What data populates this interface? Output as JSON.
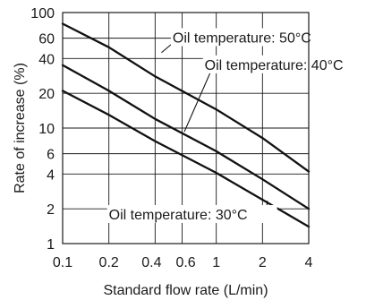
{
  "chart_data": {
    "type": "line",
    "xlabel": "Standard flow rate (L/min)",
    "ylabel": "Rate of increase (%)",
    "xscale": "log",
    "yscale": "log",
    "xlim": [
      0.1,
      4
    ],
    "ylim": [
      1,
      100
    ],
    "grid": "partial",
    "xticks": [
      {
        "value": 0.1,
        "label": "0.1"
      },
      {
        "value": 0.2,
        "label": "0.2"
      },
      {
        "value": 0.4,
        "label": "0.4"
      },
      {
        "value": 0.6,
        "label": "0.6"
      },
      {
        "value": 1,
        "label": "1"
      },
      {
        "value": 2,
        "label": "2"
      },
      {
        "value": 4,
        "label": "4"
      }
    ],
    "yticks": [
      {
        "value": 1,
        "label": "1"
      },
      {
        "value": 2,
        "label": "2"
      },
      {
        "value": 4,
        "label": "4"
      },
      {
        "value": 6,
        "label": "6"
      },
      {
        "value": 10,
        "label": "10"
      },
      {
        "value": 20,
        "label": "20"
      },
      {
        "value": 40,
        "label": "40"
      },
      {
        "value": 60,
        "label": "60"
      },
      {
        "value": 100,
        "label": "100"
      }
    ],
    "series": [
      {
        "name": "Oil temperature: 50°C",
        "x": [
          0.1,
          0.2,
          0.4,
          1,
          2,
          4
        ],
        "y": [
          80,
          50,
          28,
          14.5,
          8.2,
          4.2
        ]
      },
      {
        "name": "Oil temperature: 40°C",
        "x": [
          0.1,
          0.2,
          0.4,
          1,
          2,
          4
        ],
        "y": [
          35,
          21,
          12,
          6.3,
          3.6,
          2.0
        ]
      },
      {
        "name": "Oil temperature: 30°C",
        "x": [
          0.1,
          0.2,
          0.4,
          1,
          2,
          4
        ],
        "y": [
          21,
          13,
          7.7,
          4.1,
          2.4,
          1.4
        ]
      }
    ]
  }
}
